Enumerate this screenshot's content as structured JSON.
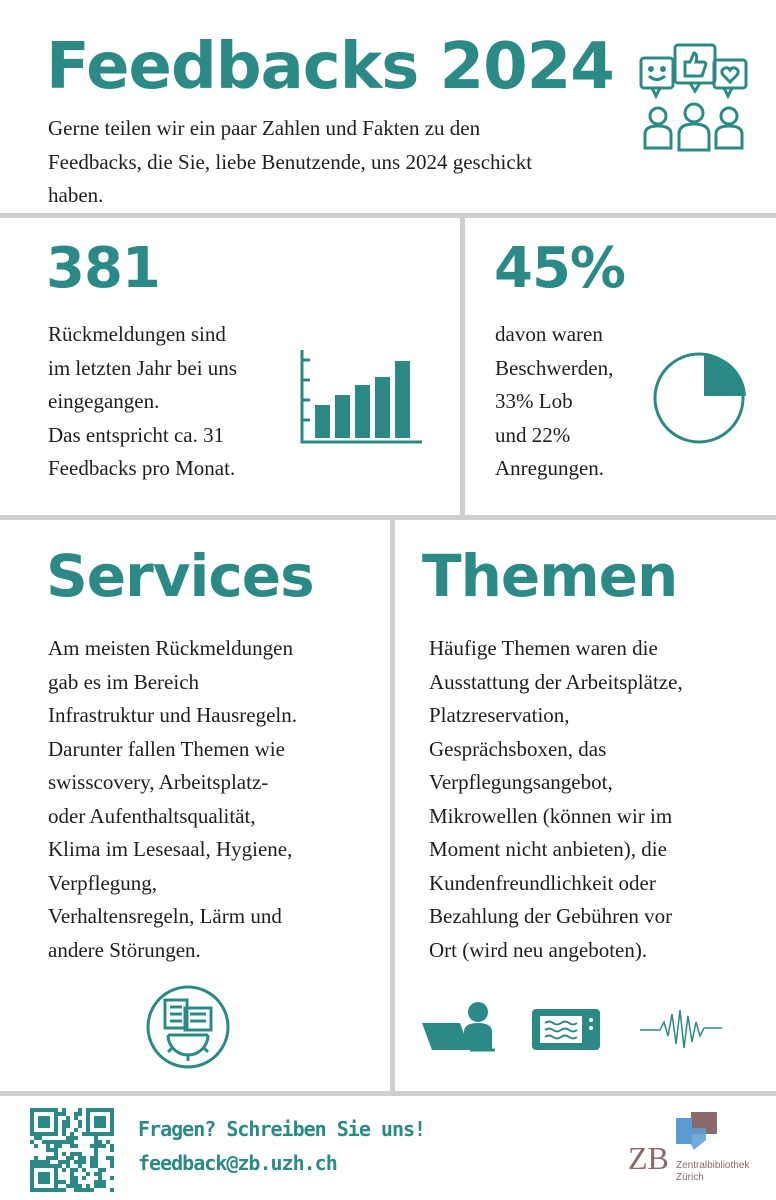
{
  "header": {
    "title": "Feedbacks 2024",
    "intro": [
      "Gerne teilen wir ein paar Zahlen und Fakten zu den",
      "Feedbacks, die Sie, liebe Benutzende, uns 2024 geschickt",
      "haben."
    ]
  },
  "stats": [
    {
      "figure": "381",
      "lines": [
        "Rückmeldungen sind",
        "im letzten Jahr bei uns",
        "eingegangen.",
        "Das entspricht ca. 31",
        "Feedbacks pro Monat."
      ]
    },
    {
      "figure": "45%",
      "lines": [
        "davon waren",
        "Beschwerden,",
        "33% Lob",
        "und 22%",
        "Anregungen."
      ]
    }
  ],
  "sections": [
    {
      "title": "Services",
      "lines": [
        "Am meisten Rückmeldungen",
        "gab es im Bereich",
        "Infrastruktur und Hausregeln.",
        "Darunter fallen Themen wie",
        "swisscovery,  Arbeitsplatz-",
        "oder Aufenthaltsqualität,",
        "Klima im Lesesaal, Hygiene,",
        "Verpflegung,",
        "Verhaltensregeln, Lärm und",
        "andere Störungen."
      ]
    },
    {
      "title": "Themen",
      "lines": [
        "Häufige Themen waren die",
        "Ausstattung der Arbeitsplätze,",
        "Platzreservation,",
        "Gesprächsboxen, das",
        "Verpflegungsangebot,",
        "Mikrowellen (können wir im",
        "Moment nicht anbieten), die",
        "Kundenfreundlichkeit oder",
        "Bezahlung der Gebühren vor",
        "Ort (wird neu angeboten)."
      ]
    }
  ],
  "footer": {
    "question": "Fragen? Schreiben Sie uns!",
    "email": "feedback@zb.uzh.ch",
    "logo_mark": "ZB",
    "logo_text": [
      "Zentralbibliothek",
      "Zürich"
    ]
  }
}
